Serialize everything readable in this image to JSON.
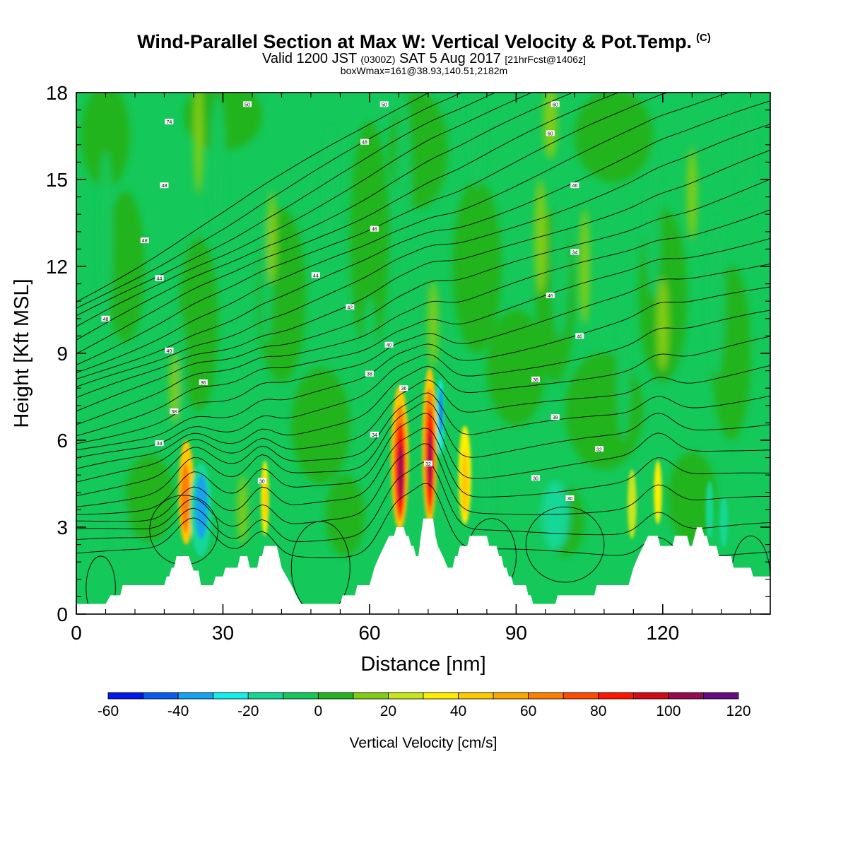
{
  "title": {
    "main": "Wind-Parallel Section at Max W: Vertical Velocity & Pot.Temp.",
    "copyright": "(C)",
    "valid_a": "Valid 1200 JST",
    "valid_z": "(0300Z)",
    "valid_b": "SAT 5 Aug 2017",
    "valid_fcst": "[21hrFcst@1406z]",
    "box": "boxWmax=161@38.93,140.51,2182m"
  },
  "chart_data": {
    "type": "heatmap",
    "xlabel": "Distance [nm]",
    "ylabel": "Height [Kft MSL]",
    "xlim": [
      0,
      142
    ],
    "ylim": [
      0,
      18
    ],
    "xticks": [
      0,
      30,
      60,
      90,
      120
    ],
    "yticks": [
      0,
      3,
      6,
      9,
      12,
      15,
      18
    ],
    "colorbar": {
      "label": "Vertical Velocity [cm/s]",
      "levels": [
        -60,
        -50,
        -40,
        -30,
        -20,
        -10,
        0,
        10,
        20,
        30,
        40,
        50,
        60,
        70,
        80,
        90,
        100,
        110,
        120
      ],
      "tick_labels": [
        "-60",
        "-40",
        "-20",
        "0",
        "20",
        "40",
        "60",
        "80",
        "100",
        "120"
      ],
      "colors": [
        "#0018ee",
        "#0a5cf0",
        "#14a3ee",
        "#14eeee",
        "#14d796",
        "#14c85a",
        "#23b41e",
        "#82cd14",
        "#c8e61e",
        "#ffee00",
        "#ffc800",
        "#ffa500",
        "#ff7d00",
        "#ff4b00",
        "#ff1400",
        "#d20a14",
        "#960a50",
        "#640a82"
      ]
    },
    "theta_contour_labels": [
      {
        "x": 35,
        "y": 17.6,
        "text": "50"
      },
      {
        "x": 63,
        "y": 17.6,
        "text": "50"
      },
      {
        "x": 98,
        "y": 17.6,
        "text": "60"
      },
      {
        "x": 19,
        "y": 17.0,
        "text": "74"
      },
      {
        "x": 97,
        "y": 16.6,
        "text": "60"
      },
      {
        "x": 59,
        "y": 16.3,
        "text": "48"
      },
      {
        "x": 18,
        "y": 14.8,
        "text": "48"
      },
      {
        "x": 102,
        "y": 14.8,
        "text": "46"
      },
      {
        "x": 61,
        "y": 13.3,
        "text": "46"
      },
      {
        "x": 14,
        "y": 12.9,
        "text": "48"
      },
      {
        "x": 102,
        "y": 12.5,
        "text": "34"
      },
      {
        "x": 17,
        "y": 11.6,
        "text": "44"
      },
      {
        "x": 49,
        "y": 11.7,
        "text": "44"
      },
      {
        "x": 97,
        "y": 11.0,
        "text": "46"
      },
      {
        "x": 56,
        "y": 10.6,
        "text": "42"
      },
      {
        "x": 6,
        "y": 10.2,
        "text": "48"
      },
      {
        "x": 103,
        "y": 9.6,
        "text": "40"
      },
      {
        "x": 64,
        "y": 9.3,
        "text": "40"
      },
      {
        "x": 19,
        "y": 9.1,
        "text": "40"
      },
      {
        "x": 60,
        "y": 8.3,
        "text": "38"
      },
      {
        "x": 94,
        "y": 8.1,
        "text": "36"
      },
      {
        "x": 26,
        "y": 8.0,
        "text": "36"
      },
      {
        "x": 67,
        "y": 7.8,
        "text": "36"
      },
      {
        "x": 20,
        "y": 7.0,
        "text": "38"
      },
      {
        "x": 98,
        "y": 6.8,
        "text": "38"
      },
      {
        "x": 61,
        "y": 6.2,
        "text": "34"
      },
      {
        "x": 17,
        "y": 5.9,
        "text": "34"
      },
      {
        "x": 107,
        "y": 5.7,
        "text": "32"
      },
      {
        "x": 72,
        "y": 5.2,
        "text": "32"
      },
      {
        "x": 38,
        "y": 4.6,
        "text": "30"
      },
      {
        "x": 94,
        "y": 4.7,
        "text": "30"
      },
      {
        "x": 101,
        "y": 4.0,
        "text": "30"
      }
    ],
    "terrain_kft": [
      [
        0,
        0.35
      ],
      [
        2,
        0.35
      ],
      [
        3,
        0.35
      ],
      [
        6,
        0.35
      ],
      [
        7,
        0.65
      ],
      [
        9,
        0.65
      ],
      [
        9.5,
        1.0
      ],
      [
        18,
        1.0
      ],
      [
        18.5,
        1.3
      ],
      [
        19,
        1.3
      ],
      [
        19.5,
        1.6
      ],
      [
        20,
        1.6
      ],
      [
        20.5,
        2.0
      ],
      [
        23,
        2.0
      ],
      [
        24,
        1.5
      ],
      [
        25,
        1.5
      ],
      [
        25.5,
        1.0
      ],
      [
        27,
        1.0
      ],
      [
        28,
        1.0
      ],
      [
        28.5,
        1.3
      ],
      [
        30,
        1.3
      ],
      [
        30.5,
        1.6
      ],
      [
        33,
        1.6
      ],
      [
        33.5,
        2.0
      ],
      [
        35,
        2.0
      ],
      [
        35.5,
        1.6
      ],
      [
        37,
        1.6
      ],
      [
        37.5,
        2.0
      ],
      [
        38,
        2.0
      ],
      [
        38.5,
        2.35
      ],
      [
        41,
        2.35
      ],
      [
        41.5,
        2.0
      ],
      [
        42,
        1.6
      ],
      [
        43,
        1.3
      ],
      [
        44,
        1.0
      ],
      [
        45,
        0.65
      ],
      [
        46,
        0.35
      ],
      [
        50,
        0.35
      ],
      [
        54,
        0.35
      ],
      [
        54.5,
        0.65
      ],
      [
        57,
        0.65
      ],
      [
        57.5,
        1.0
      ],
      [
        60,
        1.0
      ],
      [
        60.5,
        1.3
      ],
      [
        61,
        1.6
      ],
      [
        62,
        2.0
      ],
      [
        63,
        2.35
      ],
      [
        64,
        2.7
      ],
      [
        65,
        2.7
      ],
      [
        65.5,
        3.0
      ],
      [
        67,
        3.0
      ],
      [
        67.5,
        2.7
      ],
      [
        68,
        2.7
      ],
      [
        68.5,
        2.35
      ],
      [
        69,
        2.35
      ],
      [
        69.5,
        2.0
      ],
      [
        70,
        2.0
      ],
      [
        70.5,
        2.7
      ],
      [
        71,
        3.3
      ],
      [
        73,
        3.3
      ],
      [
        73.5,
        2.7
      ],
      [
        74,
        2.35
      ],
      [
        75,
        2.0
      ],
      [
        76,
        1.6
      ],
      [
        77,
        1.6
      ],
      [
        77.5,
        2.0
      ],
      [
        78,
        2.0
      ],
      [
        78.5,
        2.35
      ],
      [
        80,
        2.35
      ],
      [
        80.5,
        2.7
      ],
      [
        84,
        2.7
      ],
      [
        84.5,
        2.35
      ],
      [
        86,
        2.35
      ],
      [
        86.5,
        2.0
      ],
      [
        87,
        2.0
      ],
      [
        87.5,
        1.6
      ],
      [
        88,
        1.6
      ],
      [
        88.5,
        1.3
      ],
      [
        89,
        1.3
      ],
      [
        89.5,
        1.0
      ],
      [
        92,
        1.0
      ],
      [
        92.5,
        0.65
      ],
      [
        93,
        0.65
      ],
      [
        93.5,
        0.35
      ],
      [
        98,
        0.35
      ],
      [
        98.5,
        0.65
      ],
      [
        106,
        0.65
      ],
      [
        106.5,
        1.0
      ],
      [
        113,
        1.0
      ],
      [
        113.5,
        1.3
      ],
      [
        114,
        1.6
      ],
      [
        115,
        2.0
      ],
      [
        116,
        2.35
      ],
      [
        117,
        2.7
      ],
      [
        119,
        2.7
      ],
      [
        119.5,
        2.35
      ],
      [
        122,
        2.35
      ],
      [
        122.5,
        2.7
      ],
      [
        125,
        2.7
      ],
      [
        125.5,
        2.35
      ],
      [
        126,
        2.35
      ],
      [
        126.5,
        2.7
      ],
      [
        127,
        3.0
      ],
      [
        128,
        3.0
      ],
      [
        128.5,
        2.7
      ],
      [
        129,
        2.7
      ],
      [
        129.5,
        2.35
      ],
      [
        131,
        2.35
      ],
      [
        131.5,
        2.0
      ],
      [
        134,
        2.0
      ],
      [
        134.5,
        1.6
      ],
      [
        138,
        1.6
      ],
      [
        138.5,
        1.3
      ],
      [
        142,
        1.3
      ]
    ]
  }
}
